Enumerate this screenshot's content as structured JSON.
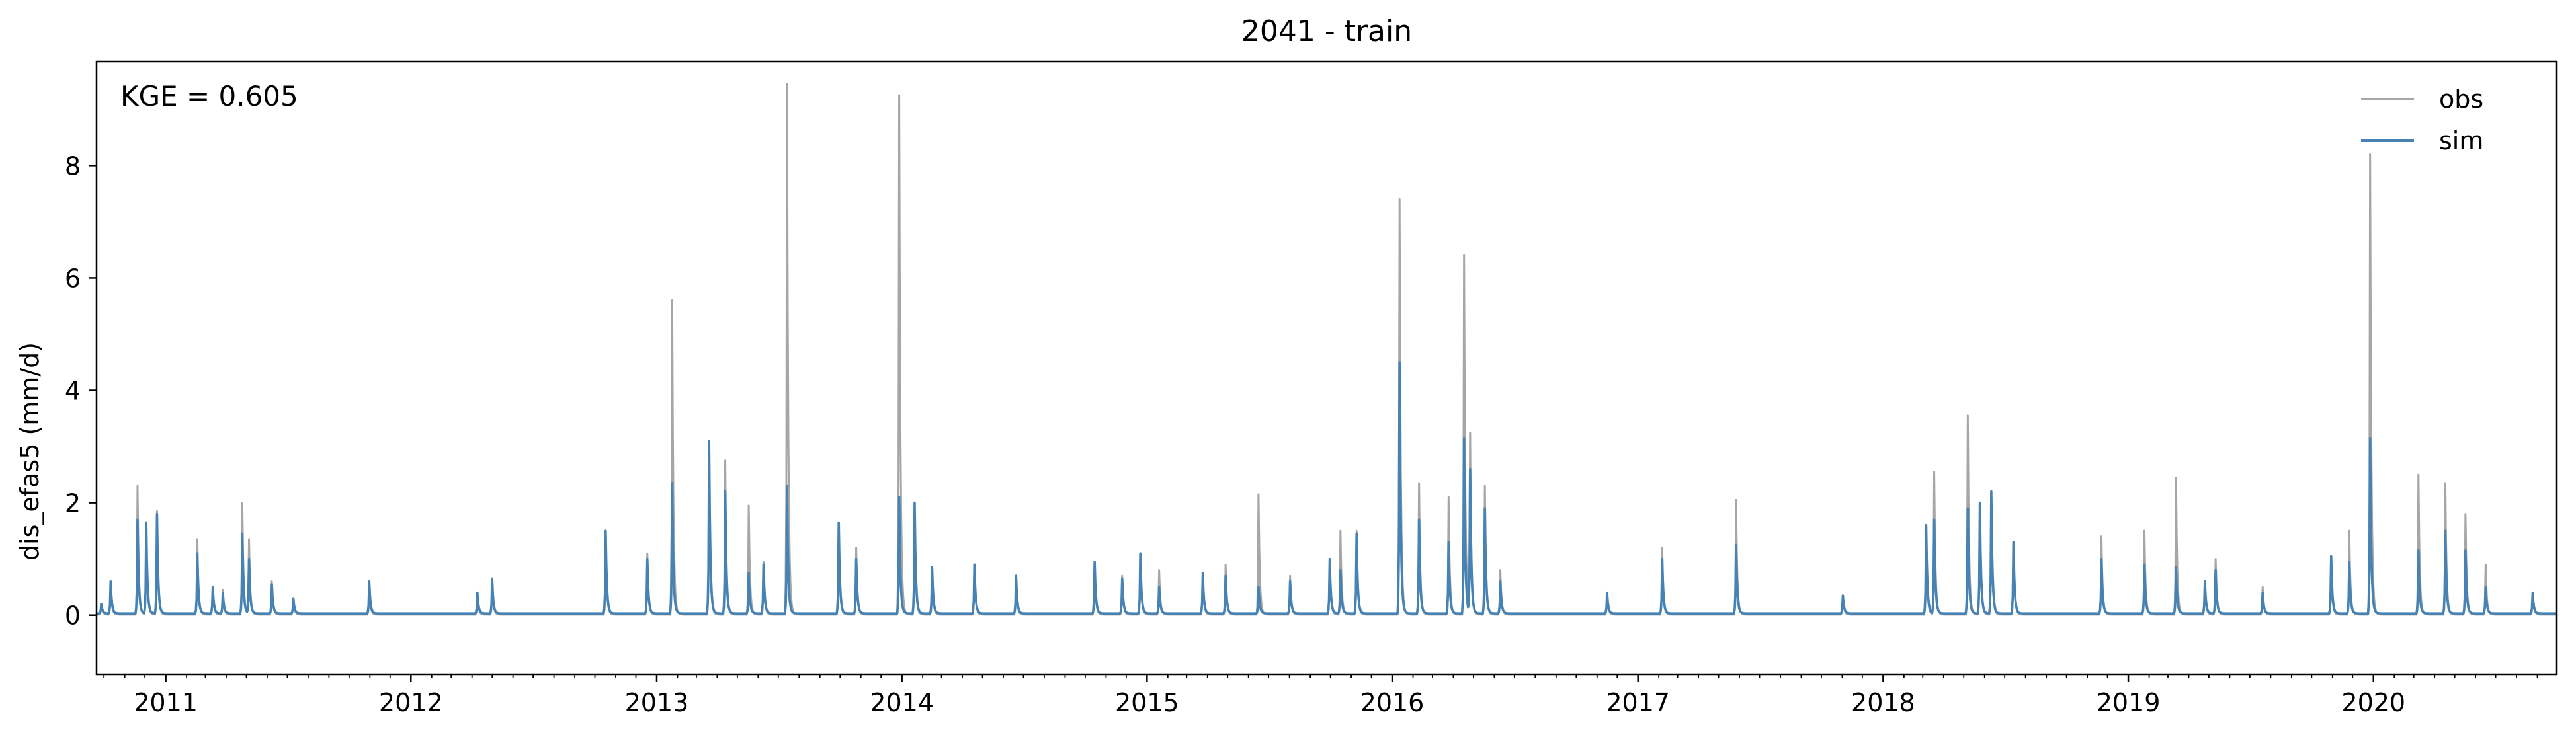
{
  "chart_data": {
    "type": "line",
    "title": "2041 - train",
    "xlabel": "",
    "ylabel": "dis_efas5 (mm/d)",
    "annotation": "KGE = 0.605",
    "x_range": [
      "2010-09-20",
      "2020-09-30"
    ],
    "ylim": [
      -1.05,
      9.85
    ],
    "y_ticks": [
      0,
      2,
      4,
      6,
      8
    ],
    "x_ticks": [
      "2011",
      "2012",
      "2013",
      "2014",
      "2015",
      "2016",
      "2017",
      "2018",
      "2019",
      "2020"
    ],
    "grid": false,
    "legend_position": "top-right",
    "baseline": {
      "obs": 0.01,
      "sim": 0.03
    },
    "series": [
      {
        "name": "obs",
        "color": "#a6a6a6",
        "peaks": [
          [
            "2010-09-27",
            0.2
          ],
          [
            "2010-10-11",
            0.55
          ],
          [
            "2010-11-20",
            2.3
          ],
          [
            "2010-12-03",
            1.6
          ],
          [
            "2010-12-19",
            1.85
          ],
          [
            "2011-02-17",
            1.35
          ],
          [
            "2011-03-12",
            0.5
          ],
          [
            "2011-03-27",
            0.45
          ],
          [
            "2011-04-25",
            2.0
          ],
          [
            "2011-05-05",
            1.35
          ],
          [
            "2011-06-08",
            0.6
          ],
          [
            "2011-07-10",
            0.3
          ],
          [
            "2011-10-31",
            0.5
          ],
          [
            "2012-04-09",
            0.35
          ],
          [
            "2012-05-01",
            0.6
          ],
          [
            "2012-10-17",
            1.4
          ],
          [
            "2012-12-18",
            1.1
          ],
          [
            "2013-01-24",
            5.6
          ],
          [
            "2013-03-20",
            2.9
          ],
          [
            "2013-04-13",
            2.75
          ],
          [
            "2013-05-18",
            1.95
          ],
          [
            "2013-06-09",
            0.95
          ],
          [
            "2013-07-14",
            9.45
          ],
          [
            "2013-09-29",
            1.6
          ],
          [
            "2013-10-25",
            1.2
          ],
          [
            "2013-12-28",
            9.25
          ],
          [
            "2014-01-20",
            1.9
          ],
          [
            "2014-02-15",
            0.8
          ],
          [
            "2014-04-19",
            0.9
          ],
          [
            "2014-06-20",
            0.65
          ],
          [
            "2014-10-15",
            0.9
          ],
          [
            "2014-11-25",
            0.7
          ],
          [
            "2014-12-22",
            1.1
          ],
          [
            "2015-01-19",
            0.8
          ],
          [
            "2015-03-25",
            0.7
          ],
          [
            "2015-04-28",
            0.9
          ],
          [
            "2015-06-16",
            2.15
          ],
          [
            "2015-08-02",
            0.7
          ],
          [
            "2015-09-30",
            1.0
          ],
          [
            "2015-10-16",
            1.5
          ],
          [
            "2015-11-09",
            1.5
          ],
          [
            "2016-01-12",
            7.4
          ],
          [
            "2016-02-10",
            2.35
          ],
          [
            "2016-03-25",
            2.1
          ],
          [
            "2016-04-17",
            6.4
          ],
          [
            "2016-04-26",
            3.25
          ],
          [
            "2016-05-18",
            2.3
          ],
          [
            "2016-06-10",
            0.8
          ],
          [
            "2016-11-16",
            0.4
          ],
          [
            "2017-02-06",
            1.2
          ],
          [
            "2017-05-27",
            2.05
          ],
          [
            "2017-11-02",
            0.35
          ],
          [
            "2018-03-06",
            1.5
          ],
          [
            "2018-03-18",
            2.55
          ],
          [
            "2018-05-07",
            3.55
          ],
          [
            "2018-05-25",
            1.95
          ],
          [
            "2018-06-11",
            2.0
          ],
          [
            "2018-07-14",
            1.3
          ],
          [
            "2018-11-22",
            1.4
          ],
          [
            "2019-01-25",
            1.5
          ],
          [
            "2019-03-13",
            2.45
          ],
          [
            "2019-04-25",
            0.6
          ],
          [
            "2019-05-11",
            1.0
          ],
          [
            "2019-07-20",
            0.5
          ],
          [
            "2019-10-30",
            1.0
          ],
          [
            "2019-11-26",
            1.5
          ],
          [
            "2019-12-27",
            8.2
          ],
          [
            "2020-03-08",
            2.5
          ],
          [
            "2020-04-17",
            2.35
          ],
          [
            "2020-05-17",
            1.8
          ],
          [
            "2020-06-16",
            0.9
          ],
          [
            "2020-08-25",
            0.4
          ]
        ]
      },
      {
        "name": "sim",
        "color": "#4682b4",
        "peaks": [
          [
            "2010-09-27",
            0.2
          ],
          [
            "2010-10-11",
            0.6
          ],
          [
            "2010-11-20",
            1.7
          ],
          [
            "2010-12-03",
            1.65
          ],
          [
            "2010-12-19",
            1.8
          ],
          [
            "2011-02-17",
            1.1
          ],
          [
            "2011-03-12",
            0.5
          ],
          [
            "2011-03-27",
            0.4
          ],
          [
            "2011-04-25",
            1.45
          ],
          [
            "2011-05-05",
            1.0
          ],
          [
            "2011-06-08",
            0.55
          ],
          [
            "2011-07-10",
            0.3
          ],
          [
            "2011-10-31",
            0.6
          ],
          [
            "2012-04-09",
            0.4
          ],
          [
            "2012-05-01",
            0.65
          ],
          [
            "2012-10-17",
            1.5
          ],
          [
            "2012-12-18",
            1.0
          ],
          [
            "2013-01-24",
            2.35
          ],
          [
            "2013-03-20",
            3.1
          ],
          [
            "2013-04-13",
            2.2
          ],
          [
            "2013-05-18",
            0.75
          ],
          [
            "2013-06-09",
            0.9
          ],
          [
            "2013-07-14",
            2.3
          ],
          [
            "2013-09-29",
            1.65
          ],
          [
            "2013-10-25",
            1.0
          ],
          [
            "2013-12-28",
            2.1
          ],
          [
            "2014-01-20",
            2.0
          ],
          [
            "2014-02-15",
            0.85
          ],
          [
            "2014-04-19",
            0.9
          ],
          [
            "2014-06-20",
            0.7
          ],
          [
            "2014-10-15",
            0.95
          ],
          [
            "2014-11-25",
            0.65
          ],
          [
            "2014-12-22",
            1.1
          ],
          [
            "2015-01-19",
            0.5
          ],
          [
            "2015-03-25",
            0.75
          ],
          [
            "2015-04-28",
            0.7
          ],
          [
            "2015-06-16",
            0.5
          ],
          [
            "2015-08-02",
            0.6
          ],
          [
            "2015-09-30",
            1.0
          ],
          [
            "2015-10-16",
            0.8
          ],
          [
            "2015-11-09",
            1.45
          ],
          [
            "2016-01-12",
            4.5
          ],
          [
            "2016-02-10",
            1.7
          ],
          [
            "2016-03-25",
            1.3
          ],
          [
            "2016-04-17",
            3.15
          ],
          [
            "2016-04-26",
            2.6
          ],
          [
            "2016-05-18",
            1.9
          ],
          [
            "2016-06-10",
            0.6
          ],
          [
            "2016-11-16",
            0.4
          ],
          [
            "2017-02-06",
            1.0
          ],
          [
            "2017-05-27",
            1.25
          ],
          [
            "2017-11-02",
            0.35
          ],
          [
            "2018-03-06",
            1.6
          ],
          [
            "2018-03-18",
            1.7
          ],
          [
            "2018-05-07",
            1.9
          ],
          [
            "2018-05-25",
            2.0
          ],
          [
            "2018-06-11",
            2.2
          ],
          [
            "2018-07-14",
            1.3
          ],
          [
            "2018-11-22",
            1.0
          ],
          [
            "2019-01-25",
            0.9
          ],
          [
            "2019-03-13",
            0.85
          ],
          [
            "2019-04-25",
            0.6
          ],
          [
            "2019-05-11",
            0.8
          ],
          [
            "2019-07-20",
            0.4
          ],
          [
            "2019-10-30",
            1.05
          ],
          [
            "2019-11-26",
            0.95
          ],
          [
            "2019-12-27",
            3.15
          ],
          [
            "2020-03-08",
            1.15
          ],
          [
            "2020-04-17",
            1.5
          ],
          [
            "2020-05-17",
            1.15
          ],
          [
            "2020-06-16",
            0.5
          ],
          [
            "2020-08-25",
            0.4
          ]
        ]
      }
    ]
  }
}
